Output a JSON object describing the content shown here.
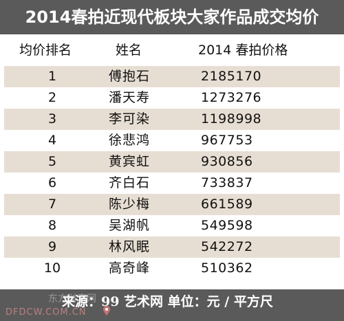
{
  "title": "2014春拍近现代板块大家作品成交均价",
  "header": {
    "rank": "均价排名",
    "name": "姓名",
    "price": "2014 春拍价格"
  },
  "rows": [
    {
      "rank": "1",
      "name": "傅抱石",
      "price": "2185170"
    },
    {
      "rank": "2",
      "name": "潘天寿",
      "price": "1273276"
    },
    {
      "rank": "3",
      "name": "李可染",
      "price": "1198998"
    },
    {
      "rank": "4",
      "name": "徐悲鸿",
      "price": "967753"
    },
    {
      "rank": "5",
      "name": "黄宾虹",
      "price": "930856"
    },
    {
      "rank": "6",
      "name": "齐白石",
      "price": "733837"
    },
    {
      "rank": "7",
      "name": "陈少梅",
      "price": "661589"
    },
    {
      "rank": "8",
      "name": "吴湖帆",
      "price": "549598"
    },
    {
      "rank": "9",
      "name": "林风眠",
      "price": "542272"
    },
    {
      "rank": "10",
      "name": "高奇峰",
      "price": "510362"
    }
  ],
  "footer": {
    "source": "来源：99 艺术网  单位：元 / 平方尺"
  },
  "watermark": {
    "site_name": "东方财富网",
    "url": "DFDCW.COM.CN"
  },
  "colors": {
    "bar": "#5a5a5a",
    "row_shade": "#e7ded3"
  },
  "icons": [
    "location-pin-icon"
  ]
}
